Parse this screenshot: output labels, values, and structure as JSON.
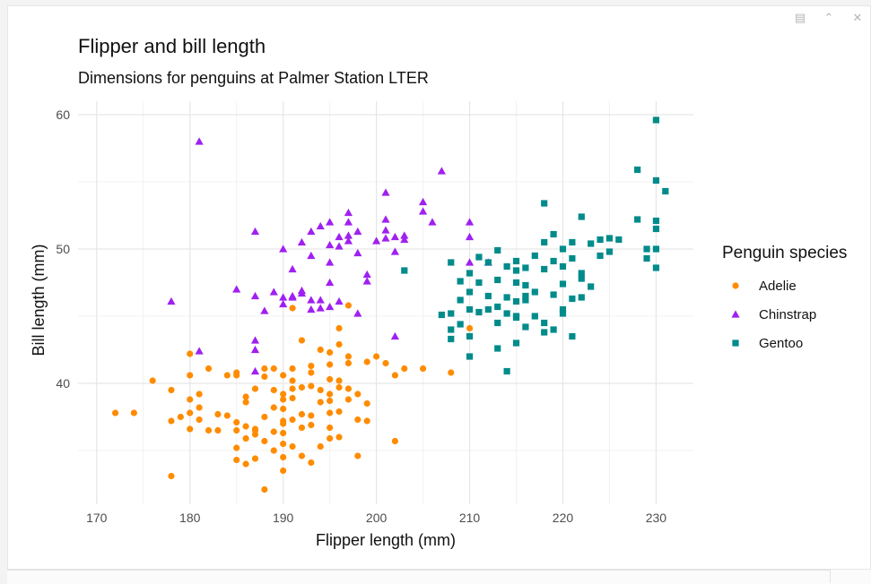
{
  "window": {
    "icons": [
      "window-icon",
      "collapse-icon",
      "close-icon"
    ]
  },
  "chart_data": {
    "type": "scatter",
    "title": "Flipper and bill length",
    "subtitle": "Dimensions for penguins at Palmer Station LTER",
    "xlabel": "Flipper length (mm)",
    "ylabel": "Bill length (mm)",
    "xlim": [
      168,
      234
    ],
    "ylim": [
      31,
      61
    ],
    "x_ticks": [
      170,
      180,
      190,
      200,
      210,
      220,
      230
    ],
    "y_ticks": [
      40,
      50,
      60
    ],
    "grid": true,
    "legend": {
      "title": "Penguin species",
      "position": "right"
    },
    "series": [
      {
        "name": "Adelie",
        "color": "#FF8C00",
        "marker": "circle",
        "points": [
          [
            172,
            37.8
          ],
          [
            174,
            37.8
          ],
          [
            176,
            40.2
          ],
          [
            178,
            37.2
          ],
          [
            178,
            39.5
          ],
          [
            178,
            33.1
          ],
          [
            179,
            37.5
          ],
          [
            180,
            42.2
          ],
          [
            180,
            37.8
          ],
          [
            180,
            36.6
          ],
          [
            180,
            38.8
          ],
          [
            180,
            40.6
          ],
          [
            181,
            37.3
          ],
          [
            181,
            38.2
          ],
          [
            181,
            39.2
          ],
          [
            182,
            36.5
          ],
          [
            182,
            41.1
          ],
          [
            183,
            37.7
          ],
          [
            183,
            36.5
          ],
          [
            184,
            40.6
          ],
          [
            184,
            37.6
          ],
          [
            185,
            40.8
          ],
          [
            185,
            36.5
          ],
          [
            185,
            35.2
          ],
          [
            185,
            34.3
          ],
          [
            185,
            40.6
          ],
          [
            185,
            37.1
          ],
          [
            186,
            35.9
          ],
          [
            186,
            38.6
          ],
          [
            186,
            39.0
          ],
          [
            186,
            34.0
          ],
          [
            186,
            36.8
          ],
          [
            187,
            36.2
          ],
          [
            187,
            36.6
          ],
          [
            187,
            39.6
          ],
          [
            187,
            34.4
          ],
          [
            187,
            36.5
          ],
          [
            188,
            41.1
          ],
          [
            188,
            35.7
          ],
          [
            188,
            37.5
          ],
          [
            188,
            40.5
          ],
          [
            188,
            32.1
          ],
          [
            189,
            39.5
          ],
          [
            189,
            36.4
          ],
          [
            189,
            35.0
          ],
          [
            189,
            38.2
          ],
          [
            189,
            41.1
          ],
          [
            190,
            37.2
          ],
          [
            190,
            38.8
          ],
          [
            190,
            40.6
          ],
          [
            190,
            36.3
          ],
          [
            190,
            39.2
          ],
          [
            190,
            34.5
          ],
          [
            190,
            35.5
          ],
          [
            190,
            37.0
          ],
          [
            190,
            38.1
          ],
          [
            190,
            33.5
          ],
          [
            191,
            41.1
          ],
          [
            191,
            37.3
          ],
          [
            191,
            39.6
          ],
          [
            191,
            38.9
          ],
          [
            191,
            35.3
          ],
          [
            191,
            40.2
          ],
          [
            192,
            37.7
          ],
          [
            192,
            36.7
          ],
          [
            192,
            39.7
          ],
          [
            192,
            34.6
          ],
          [
            192,
            43.2
          ],
          [
            193,
            41.3
          ],
          [
            193,
            39.8
          ],
          [
            193,
            37.6
          ],
          [
            193,
            36.9
          ],
          [
            193,
            40.8
          ],
          [
            193,
            34.1
          ],
          [
            194,
            35.3
          ],
          [
            194,
            38.6
          ],
          [
            194,
            39.5
          ],
          [
            194,
            42.5
          ],
          [
            195,
            37.8
          ],
          [
            195,
            40.3
          ],
          [
            195,
            35.9
          ],
          [
            195,
            41.4
          ],
          [
            195,
            42.3
          ],
          [
            195,
            39.2
          ],
          [
            195,
            36.7
          ],
          [
            195,
            38.7
          ],
          [
            196,
            44.1
          ],
          [
            196,
            40.2
          ],
          [
            196,
            39.7
          ],
          [
            196,
            42.9
          ],
          [
            196,
            37.9
          ],
          [
            196,
            36.0
          ],
          [
            197,
            39.6
          ],
          [
            197,
            41.5
          ],
          [
            197,
            38.8
          ],
          [
            197,
            45.8
          ],
          [
            197,
            42.0
          ],
          [
            198,
            39.2
          ],
          [
            198,
            37.3
          ],
          [
            198,
            34.6
          ],
          [
            199,
            41.6
          ],
          [
            199,
            38.5
          ],
          [
            199,
            37.2
          ],
          [
            200,
            42.0
          ],
          [
            201,
            41.5
          ],
          [
            202,
            35.7
          ],
          [
            202,
            40.6
          ],
          [
            203,
            41.1
          ],
          [
            205,
            41.1
          ],
          [
            208,
            40.8
          ],
          [
            210,
            44.1
          ],
          [
            191,
            45.6
          ]
        ]
      },
      {
        "name": "Chinstrap",
        "color": "#A020F0",
        "marker": "triangle",
        "points": [
          [
            178,
            46.1
          ],
          [
            181,
            58.0
          ],
          [
            181,
            42.4
          ],
          [
            185,
            47.0
          ],
          [
            187,
            51.3
          ],
          [
            187,
            46.5
          ],
          [
            187,
            42.5
          ],
          [
            187,
            43.2
          ],
          [
            187,
            40.9
          ],
          [
            188,
            45.4
          ],
          [
            189,
            46.8
          ],
          [
            190,
            45.9
          ],
          [
            190,
            50.0
          ],
          [
            190,
            46.4
          ],
          [
            191,
            46.5
          ],
          [
            191,
            48.5
          ],
          [
            191,
            46.4
          ],
          [
            192,
            46.9
          ],
          [
            192,
            46.7
          ],
          [
            192,
            50.5
          ],
          [
            193,
            45.5
          ],
          [
            193,
            49.5
          ],
          [
            193,
            51.3
          ],
          [
            193,
            46.2
          ],
          [
            194,
            45.6
          ],
          [
            194,
            51.7
          ],
          [
            194,
            46.2
          ],
          [
            195,
            49.0
          ],
          [
            195,
            52.0
          ],
          [
            195,
            47.5
          ],
          [
            195,
            45.7
          ],
          [
            195,
            50.3
          ],
          [
            196,
            46.1
          ],
          [
            196,
            50.9
          ],
          [
            196,
            50.2
          ],
          [
            197,
            50.6
          ],
          [
            197,
            52.7
          ],
          [
            197,
            51.0
          ],
          [
            197,
            52.0
          ],
          [
            198,
            49.7
          ],
          [
            198,
            45.2
          ],
          [
            198,
            51.3
          ],
          [
            199,
            48.1
          ],
          [
            199,
            47.6
          ],
          [
            200,
            50.6
          ],
          [
            201,
            52.2
          ],
          [
            201,
            54.2
          ],
          [
            201,
            50.8
          ],
          [
            201,
            51.4
          ],
          [
            202,
            49.8
          ],
          [
            202,
            43.5
          ],
          [
            202,
            50.9
          ],
          [
            203,
            50.7
          ],
          [
            203,
            51.0
          ],
          [
            205,
            52.8
          ],
          [
            205,
            53.5
          ],
          [
            206,
            52.0
          ],
          [
            207,
            55.8
          ],
          [
            210,
            52.0
          ],
          [
            210,
            50.9
          ],
          [
            210,
            49.0
          ],
          [
            212,
            49.0
          ]
        ]
      },
      {
        "name": "Gentoo",
        "color": "#008B8B",
        "marker": "square",
        "points": [
          [
            203,
            48.4
          ],
          [
            207,
            45.1
          ],
          [
            208,
            44.0
          ],
          [
            208,
            43.3
          ],
          [
            208,
            49.0
          ],
          [
            208,
            45.2
          ],
          [
            209,
            47.6
          ],
          [
            209,
            46.2
          ],
          [
            209,
            44.4
          ],
          [
            210,
            45.5
          ],
          [
            210,
            48.2
          ],
          [
            210,
            43.5
          ],
          [
            210,
            46.8
          ],
          [
            210,
            42.0
          ],
          [
            211,
            47.5
          ],
          [
            211,
            49.4
          ],
          [
            211,
            45.3
          ],
          [
            212,
            46.5
          ],
          [
            212,
            45.5
          ],
          [
            212,
            49.0
          ],
          [
            213,
            47.7
          ],
          [
            213,
            45.7
          ],
          [
            213,
            49.9
          ],
          [
            213,
            44.5
          ],
          [
            213,
            42.6
          ],
          [
            214,
            45.2
          ],
          [
            214,
            46.4
          ],
          [
            214,
            48.7
          ],
          [
            214,
            40.9
          ],
          [
            215,
            47.5
          ],
          [
            215,
            44.9
          ],
          [
            215,
            46.1
          ],
          [
            215,
            48.4
          ],
          [
            215,
            45.0
          ],
          [
            215,
            49.1
          ],
          [
            215,
            43.0
          ],
          [
            216,
            46.5
          ],
          [
            216,
            47.3
          ],
          [
            216,
            44.2
          ],
          [
            216,
            48.6
          ],
          [
            217,
            45.0
          ],
          [
            217,
            49.5
          ],
          [
            217,
            46.8
          ],
          [
            218,
            44.5
          ],
          [
            218,
            48.5
          ],
          [
            218,
            50.5
          ],
          [
            218,
            43.8
          ],
          [
            219,
            46.6
          ],
          [
            219,
            49.1
          ],
          [
            219,
            44.0
          ],
          [
            220,
            50.0
          ],
          [
            220,
            45.2
          ],
          [
            220,
            47.4
          ],
          [
            220,
            48.7
          ],
          [
            221,
            50.5
          ],
          [
            221,
            46.3
          ],
          [
            221,
            49.3
          ],
          [
            222,
            47.8
          ],
          [
            222,
            52.4
          ],
          [
            222,
            48.2
          ],
          [
            222,
            46.4
          ],
          [
            223,
            47.2
          ],
          [
            223,
            50.4
          ],
          [
            224,
            49.5
          ],
          [
            224,
            50.7
          ],
          [
            225,
            50.8
          ],
          [
            225,
            49.8
          ],
          [
            226,
            50.7
          ],
          [
            228,
            55.9
          ],
          [
            228,
            52.2
          ],
          [
            229,
            49.3
          ],
          [
            229,
            50.0
          ],
          [
            230,
            59.6
          ],
          [
            230,
            55.1
          ],
          [
            230,
            52.1
          ],
          [
            230,
            51.5
          ],
          [
            230,
            50.0
          ],
          [
            230,
            48.6
          ],
          [
            231,
            54.3
          ],
          [
            216,
            46.2
          ],
          [
            218,
            53.4
          ],
          [
            219,
            51.1
          ],
          [
            220,
            45.5
          ],
          [
            221,
            43.5
          ]
        ]
      }
    ]
  }
}
